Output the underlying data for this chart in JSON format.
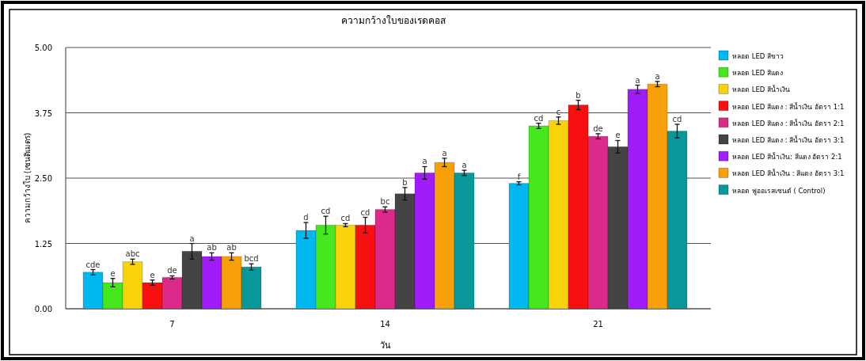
{
  "chart_data": {
    "type": "bar",
    "title": "ความกว้างใบของเรดคอส",
    "xlabel": "วัน",
    "ylabel": "ความกว้างใบ (เซนติเมตร)",
    "categories": [
      "7",
      "14",
      "21"
    ],
    "ylim": [
      0,
      5
    ],
    "yticks": [
      {
        "value": 0,
        "label": "0.00"
      },
      {
        "value": 1.25,
        "label": "1.25"
      },
      {
        "value": 2.5,
        "label": "2.50"
      },
      {
        "value": 3.75,
        "label": "3.75"
      },
      {
        "value": 5,
        "label": "5.00"
      }
    ],
    "grid": "y",
    "legend": "right",
    "series": [
      {
        "name": "หลอด LED  สีขาว",
        "color": "#00b8f0",
        "values": [
          0.7,
          1.5,
          2.4
        ],
        "errors": [
          0.05,
          0.15,
          0.03
        ],
        "value_labels": [
          "cde",
          "d",
          "f"
        ]
      },
      {
        "name": "หลอด LED สีแดง",
        "color": "#44e81c",
        "values": [
          0.5,
          1.6,
          3.5
        ],
        "errors": [
          0.08,
          0.17,
          0.05
        ],
        "value_labels": [
          "e",
          "cd",
          "cd"
        ]
      },
      {
        "name": "หลอด LED สีน้ำเงิน",
        "color": "#f8d20a",
        "values": [
          0.9,
          1.6,
          3.6
        ],
        "errors": [
          0.05,
          0.03,
          0.07
        ],
        "value_labels": [
          "abc",
          "cd",
          "c"
        ]
      },
      {
        "name": "หลอด LED สีแดง : สีน้ำเงิน อัตรา 1:1",
        "color": "#f81010",
        "values": [
          0.5,
          1.6,
          3.9
        ],
        "errors": [
          0.05,
          0.15,
          0.09
        ],
        "value_labels": [
          "e",
          "cd",
          "b"
        ]
      },
      {
        "name": "หลอด LED สีแดง : สีน้ำเงิน อัตรา 2:1",
        "color": "#dc2a8a",
        "values": [
          0.6,
          1.9,
          3.3
        ],
        "errors": [
          0.03,
          0.05,
          0.05
        ],
        "value_labels": [
          "de",
          "bc",
          "de"
        ]
      },
      {
        "name": "หลอด LED สีแดง : สีน้ำเงิน อัตรา 3:1",
        "color": "#444444",
        "values": [
          1.1,
          2.2,
          3.1
        ],
        "errors": [
          0.15,
          0.12,
          0.12
        ],
        "value_labels": [
          "a",
          "b",
          "e"
        ]
      },
      {
        "name": "หลอด LED สีน้ำเงิน: สีแดง อัตรา  2:1",
        "color": "#a01cf8",
        "values": [
          1.0,
          2.6,
          4.2
        ],
        "errors": [
          0.07,
          0.12,
          0.08
        ],
        "value_labels": [
          "ab",
          "a",
          "a"
        ]
      },
      {
        "name": "หลอด LED สีน้ำเงิน : สีแดง  อัตรา 3:1",
        "color": "#f8a008",
        "values": [
          1.0,
          2.8,
          4.3
        ],
        "errors": [
          0.07,
          0.08,
          0.05
        ],
        "value_labels": [
          "ab",
          "a",
          "a"
        ]
      },
      {
        "name": "หลอด ฟูออเรสเซนต์ ( Control)",
        "color": "#08989a",
        "values": [
          0.8,
          2.6,
          3.4
        ],
        "errors": [
          0.06,
          0.05,
          0.13
        ],
        "value_labels": [
          "bcd",
          "a",
          "cd"
        ]
      }
    ]
  }
}
